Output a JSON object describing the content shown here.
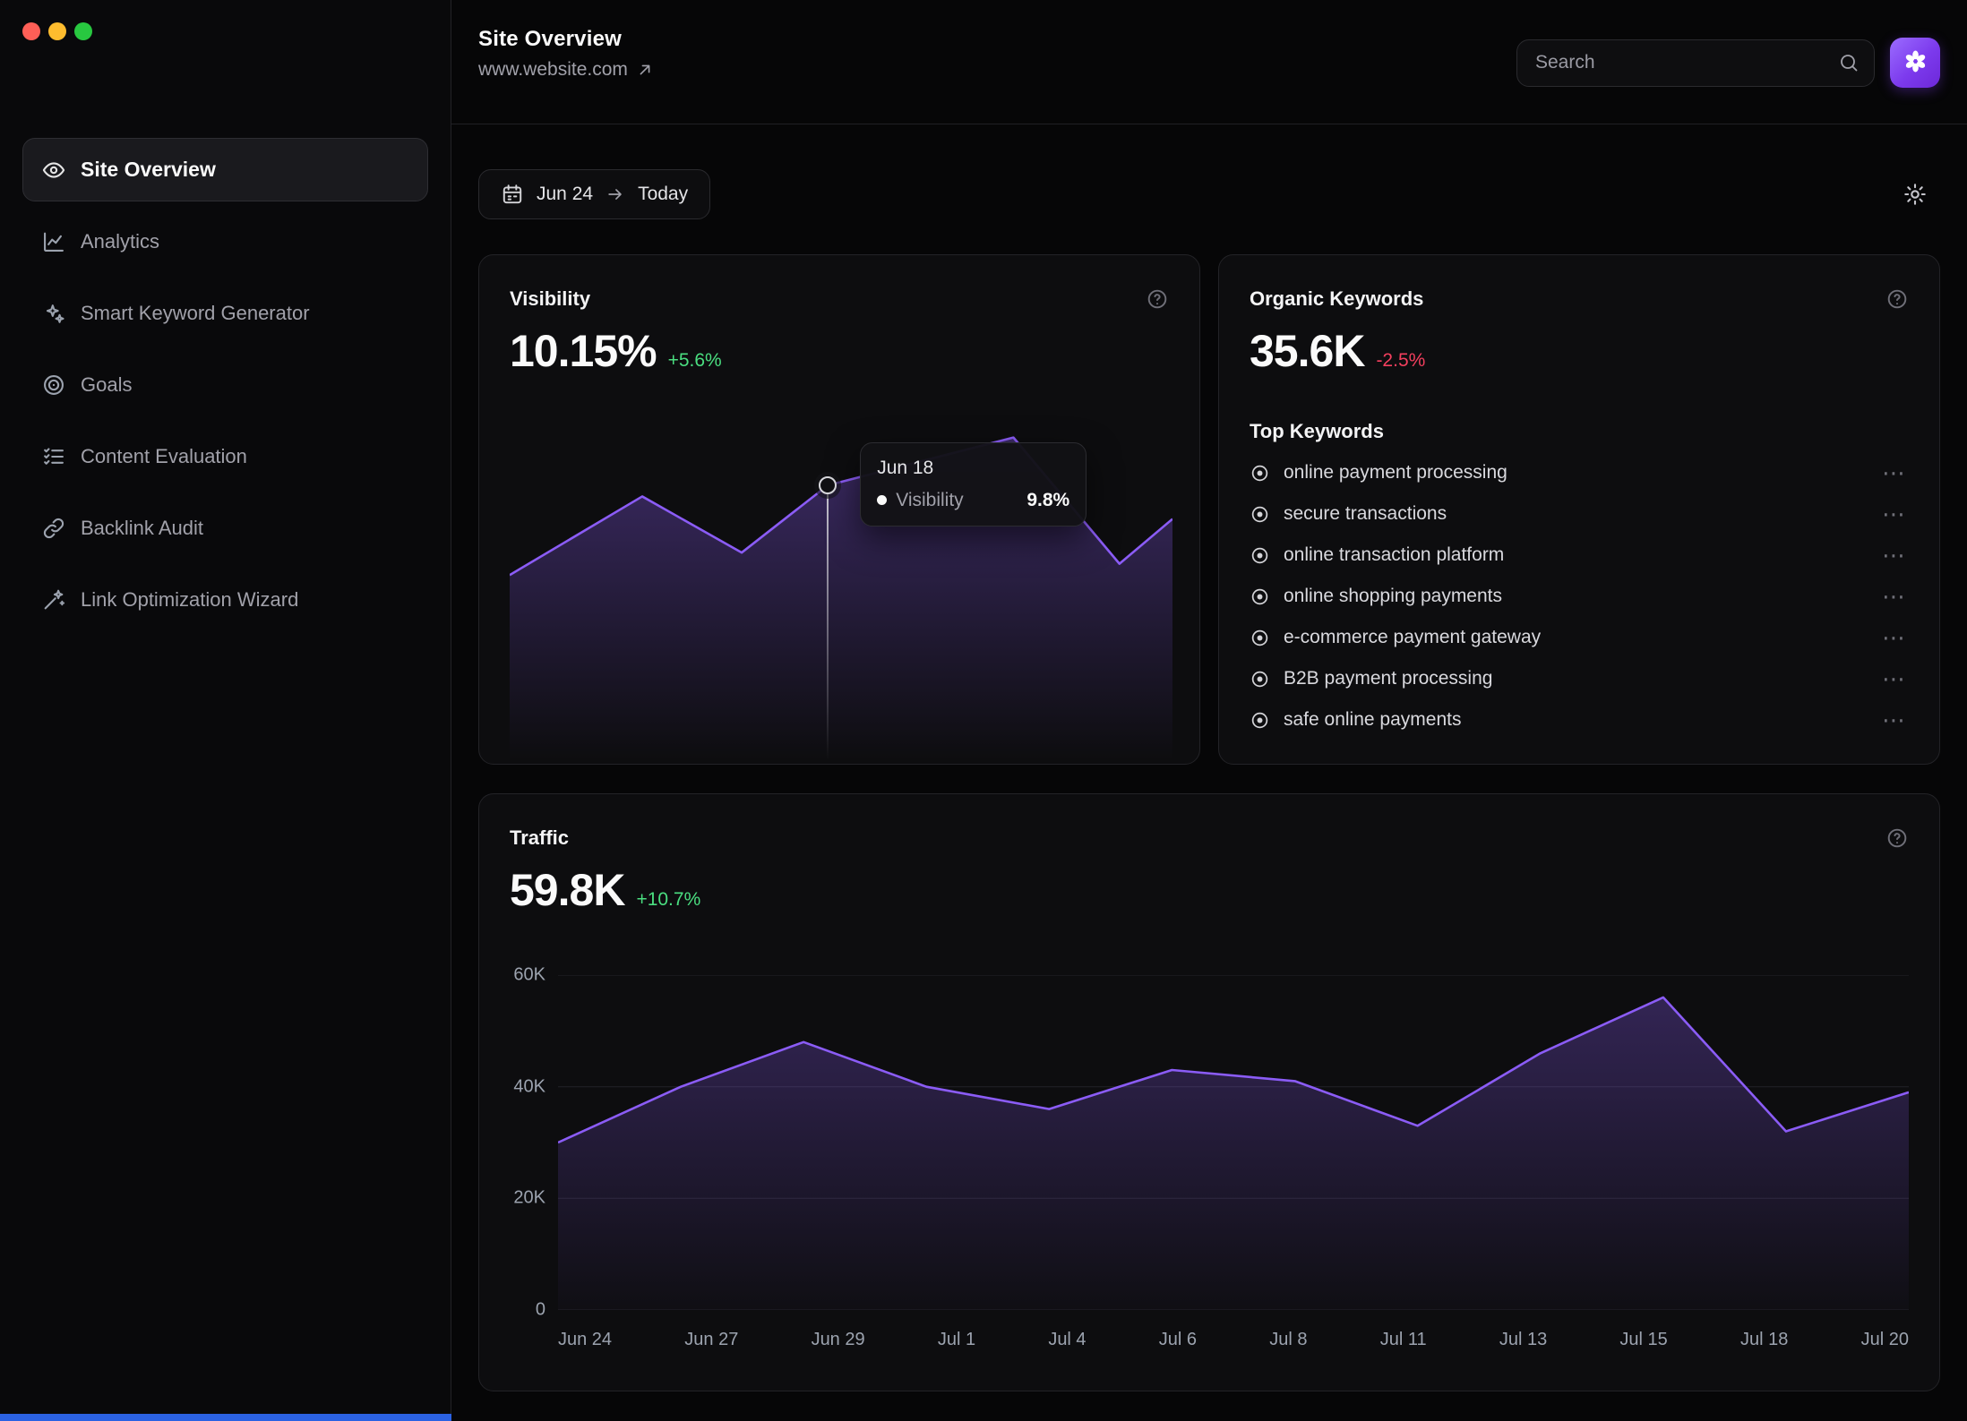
{
  "window_controls": {
    "buttons": [
      "close",
      "minimize",
      "zoom"
    ],
    "colors": [
      "#ff5f57",
      "#febc2e",
      "#28c840"
    ]
  },
  "sidebar": {
    "items": [
      {
        "label": "Site Overview",
        "icon": "eye",
        "active": true
      },
      {
        "label": "Analytics",
        "icon": "chart-line",
        "active": false
      },
      {
        "label": "Smart Keyword Generator",
        "icon": "sparkles",
        "active": false
      },
      {
        "label": "Goals",
        "icon": "target",
        "active": false
      },
      {
        "label": "Content Evaluation",
        "icon": "list-checks",
        "active": false
      },
      {
        "label": "Backlink Audit",
        "icon": "link",
        "active": false
      },
      {
        "label": "Link Optimization Wizard",
        "icon": "wand",
        "active": false
      }
    ]
  },
  "header": {
    "title": "Site Overview",
    "url": "www.website.com",
    "search_placeholder": "Search"
  },
  "toolbar": {
    "date_start": "Jun 24",
    "date_end": "Today"
  },
  "cards": {
    "visibility": {
      "title": "Visibility",
      "value": "10.15%",
      "delta": "+5.6%",
      "direction": "up",
      "tooltip": {
        "date": "Jun 18",
        "series": "Visibility",
        "value": "9.8%"
      }
    },
    "organic_keywords": {
      "title": "Organic Keywords",
      "value": "35.6K",
      "delta": "-2.5%",
      "direction": "down",
      "subtitle": "Top Keywords",
      "keywords": [
        "online payment processing",
        "secure transactions",
        "online transaction platform",
        "online shopping payments",
        "e-commerce payment gateway",
        "B2B payment processing",
        "safe online payments"
      ]
    },
    "traffic": {
      "title": "Traffic",
      "value": "59.8K",
      "delta": "+10.7%",
      "direction": "up"
    }
  },
  "chart_data": [
    {
      "type": "area",
      "name": "visibility-trend",
      "title": "Visibility",
      "series": [
        {
          "name": "Visibility",
          "values": [
            6.6,
            9.4,
            7.4,
            9.8,
            11.5,
            7.0,
            8.6
          ]
        }
      ],
      "x_relative_0_1": [
        0,
        0.2,
        0.35,
        0.48,
        0.76,
        0.92,
        1
      ],
      "ylim": [
        0,
        12
      ],
      "unit": "%",
      "grid": false,
      "axes_visible": false,
      "color": "#8b5cf6",
      "highlight": {
        "index": 3,
        "label": "Jun 18",
        "value": "9.8%"
      }
    },
    {
      "type": "area",
      "name": "traffic-trend",
      "title": "Traffic",
      "categories": [
        "Jun 24",
        "Jun 27",
        "Jun 29",
        "Jul 1",
        "Jul 4",
        "Jul 6",
        "Jul 8",
        "Jul 11",
        "Jul 13",
        "Jul 15",
        "Jul 18",
        "Jul 20"
      ],
      "values": [
        30000,
        40000,
        48000,
        40000,
        36000,
        43000,
        41000,
        33000,
        46000,
        56000,
        32000,
        39000
      ],
      "ylim": [
        0,
        60000
      ],
      "yticks": [
        "0",
        "20K",
        "40K",
        "60K"
      ],
      "ytick_values": [
        0,
        20000,
        40000,
        60000
      ],
      "grid": true,
      "legend": "none",
      "color": "#8b5cf6"
    }
  ],
  "colors": {
    "accent": "#8b5cf6",
    "accent_deep": "#6d28d9",
    "positive": "#4ade80",
    "negative": "#f43f5e",
    "background": "#060607",
    "card_background": "#0d0d0f",
    "border": "#232327",
    "gridline": "#232328",
    "muted_text": "#9ca3af"
  }
}
